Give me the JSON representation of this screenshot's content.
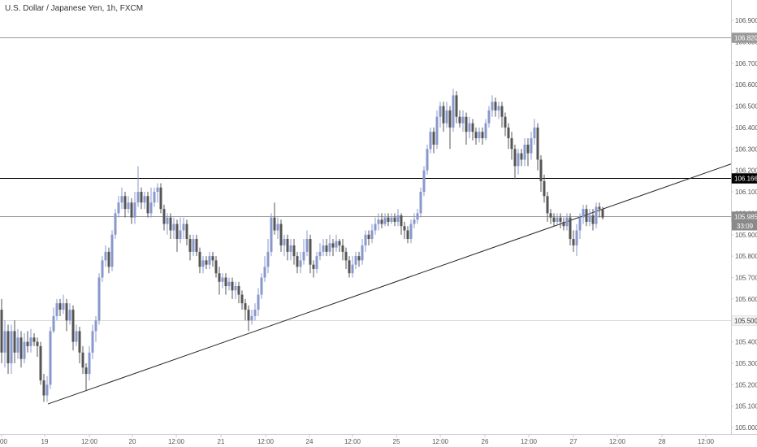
{
  "chart_data": {
    "type": "candlestick",
    "title": "U.S. Dollar / Japanese Yen, 1h, FXCM",
    "y_ticks": [
      "105.000",
      "105.100",
      "105.200",
      "105.300",
      "105.400",
      "105.500",
      "105.600",
      "105.700",
      "105.800",
      "105.900",
      "106.000",
      "106.100",
      "106.200",
      "106.300",
      "106.400",
      "106.500",
      "106.600",
      "106.700",
      "106.800",
      "106.900"
    ],
    "ylim": [
      104.97,
      106.995
    ],
    "x_ticks": [
      {
        "label": "00",
        "pos": 2
      },
      {
        "label": "19",
        "pos": 55
      },
      {
        "label": "12:00",
        "pos": 110
      },
      {
        "label": "20",
        "pos": 163
      },
      {
        "label": "12:00",
        "pos": 217
      },
      {
        "label": "21",
        "pos": 272
      },
      {
        "label": "12:00",
        "pos": 327
      },
      {
        "label": "24",
        "pos": 381
      },
      {
        "label": "12:00",
        "pos": 434
      },
      {
        "label": "25",
        "pos": 488
      },
      {
        "label": "12:00",
        "pos": 542
      },
      {
        "label": "26",
        "pos": 597
      },
      {
        "label": "12:00",
        "pos": 651
      },
      {
        "label": "27",
        "pos": 706
      },
      {
        "label": "12:00",
        "pos": 760
      },
      {
        "label": "28",
        "pos": 815
      },
      {
        "label": "12:00",
        "pos": 869
      }
    ],
    "x_range": [
      0,
      900
    ],
    "candles": [
      [
        2,
        105.55,
        105.35,
        105.6,
        105.3
      ],
      [
        6,
        105.35,
        105.45,
        105.5,
        105.28
      ],
      [
        10,
        105.45,
        105.3,
        105.48,
        105.25
      ],
      [
        14,
        105.3,
        105.45,
        105.48,
        105.25
      ],
      [
        18,
        105.45,
        105.35,
        105.5,
        105.3
      ],
      [
        22,
        105.35,
        105.42,
        105.46,
        105.32
      ],
      [
        26,
        105.42,
        105.32,
        105.45,
        105.28
      ],
      [
        30,
        105.32,
        105.4,
        105.44,
        105.3
      ],
      [
        34,
        105.4,
        105.38,
        105.45,
        105.35
      ],
      [
        38,
        105.38,
        105.42,
        105.46,
        105.35
      ],
      [
        42,
        105.42,
        105.4,
        105.44,
        105.38
      ],
      [
        46,
        105.4,
        105.38,
        105.42,
        105.33
      ],
      [
        50,
        105.38,
        105.22,
        105.4,
        105.2
      ],
      [
        54,
        105.22,
        105.15,
        105.25,
        105.12
      ],
      [
        58,
        105.15,
        105.2,
        105.24,
        105.12
      ],
      [
        62,
        105.2,
        105.45,
        105.47,
        105.18
      ],
      [
        66,
        105.45,
        105.52,
        105.56,
        105.44
      ],
      [
        70,
        105.52,
        105.58,
        105.6,
        105.5
      ],
      [
        74,
        105.58,
        105.55,
        105.6,
        105.52
      ],
      [
        78,
        105.55,
        105.58,
        105.62,
        105.53
      ],
      [
        82,
        105.58,
        105.5,
        105.6,
        105.45
      ],
      [
        86,
        105.5,
        105.55,
        105.58,
        105.48
      ],
      [
        90,
        105.55,
        105.4,
        105.57,
        105.36
      ],
      [
        94,
        105.4,
        105.45,
        105.48,
        105.38
      ],
      [
        98,
        105.45,
        105.35,
        105.47,
        105.3
      ],
      [
        102,
        105.35,
        105.28,
        105.38,
        105.25
      ],
      [
        106,
        105.28,
        105.25,
        105.3,
        105.17
      ],
      [
        110,
        105.25,
        105.35,
        105.38,
        105.22
      ],
      [
        114,
        105.35,
        105.45,
        105.48,
        105.32
      ],
      [
        118,
        105.45,
        105.5,
        105.52,
        105.4
      ],
      [
        122,
        105.5,
        105.7,
        105.72,
        105.48
      ],
      [
        126,
        105.7,
        105.78,
        105.8,
        105.68
      ],
      [
        130,
        105.78,
        105.82,
        105.85,
        105.75
      ],
      [
        134,
        105.82,
        105.75,
        105.84,
        105.72
      ],
      [
        138,
        105.75,
        105.9,
        105.92,
        105.73
      ],
      [
        142,
        105.9,
        106.0,
        106.02,
        105.88
      ],
      [
        146,
        106.0,
        106.05,
        106.08,
        105.98
      ],
      [
        150,
        106.05,
        106.08,
        106.12,
        106.02
      ],
      [
        154,
        106.08,
        106.02,
        106.1,
        105.98
      ],
      [
        158,
        106.02,
        106.05,
        106.08,
        106.0
      ],
      [
        162,
        106.05,
        105.98,
        106.07,
        105.95
      ],
      [
        166,
        105.98,
        106.05,
        106.1,
        105.95
      ],
      [
        170,
        106.05,
        106.1,
        106.22,
        106.03
      ],
      [
        174,
        106.1,
        106.05,
        106.12,
        106.02
      ],
      [
        178,
        106.05,
        106.08,
        106.1,
        106.02
      ],
      [
        182,
        106.08,
        106.0,
        106.1,
        105.98
      ],
      [
        186,
        106.0,
        106.05,
        106.12,
        105.98
      ],
      [
        190,
        106.05,
        106.1,
        106.12,
        106.03
      ],
      [
        194,
        106.1,
        106.12,
        106.14,
        106.05
      ],
      [
        198,
        106.12,
        106.02,
        106.14,
        106.0
      ],
      [
        202,
        106.02,
        105.95,
        106.04,
        105.92
      ],
      [
        206,
        105.95,
        105.98,
        106.0,
        105.9
      ],
      [
        210,
        105.98,
        105.92,
        106.0,
        105.88
      ],
      [
        214,
        105.92,
        105.95,
        105.98,
        105.88
      ],
      [
        218,
        105.95,
        105.88,
        105.97,
        105.82
      ],
      [
        222,
        105.88,
        105.92,
        105.98,
        105.86
      ],
      [
        226,
        105.92,
        105.95,
        105.98,
        105.88
      ],
      [
        230,
        105.95,
        105.88,
        105.97,
        105.85
      ],
      [
        234,
        105.88,
        105.82,
        105.9,
        105.78
      ],
      [
        238,
        105.82,
        105.88,
        105.9,
        105.8
      ],
      [
        242,
        105.88,
        105.82,
        105.9,
        105.8
      ],
      [
        246,
        105.82,
        105.75,
        105.84,
        105.72
      ],
      [
        250,
        105.75,
        105.78,
        105.8,
        105.72
      ],
      [
        254,
        105.78,
        105.76,
        105.8,
        105.74
      ],
      [
        258,
        105.76,
        105.8,
        105.82,
        105.74
      ],
      [
        262,
        105.8,
        105.78,
        105.82,
        105.75
      ],
      [
        266,
        105.78,
        105.72,
        105.8,
        105.7
      ],
      [
        270,
        105.72,
        105.68,
        105.75,
        105.62
      ],
      [
        274,
        105.68,
        105.7,
        105.72,
        105.65
      ],
      [
        278,
        105.7,
        105.66,
        105.72,
        105.62
      ],
      [
        282,
        105.66,
        105.68,
        105.7,
        105.64
      ],
      [
        286,
        105.68,
        105.64,
        105.7,
        105.6
      ],
      [
        290,
        105.64,
        105.66,
        105.68,
        105.6
      ],
      [
        294,
        105.66,
        105.62,
        105.68,
        105.58
      ],
      [
        298,
        105.62,
        105.58,
        105.64,
        105.55
      ],
      [
        302,
        105.58,
        105.55,
        105.6,
        105.5
      ],
      [
        306,
        105.55,
        105.5,
        105.57,
        105.45
      ],
      [
        310,
        105.5,
        105.52,
        105.55,
        105.48
      ],
      [
        314,
        105.52,
        105.55,
        105.58,
        105.5
      ],
      [
        318,
        105.55,
        105.62,
        105.65,
        105.52
      ],
      [
        322,
        105.62,
        105.7,
        105.72,
        105.6
      ],
      [
        326,
        105.7,
        105.75,
        105.8,
        105.68
      ],
      [
        330,
        105.75,
        105.82,
        105.88,
        105.72
      ],
      [
        334,
        105.82,
        105.98,
        106.0,
        105.8
      ],
      [
        338,
        105.98,
        105.92,
        106.05,
        105.9
      ],
      [
        342,
        105.92,
        105.95,
        105.98,
        105.88
      ],
      [
        346,
        105.95,
        105.85,
        105.97,
        105.82
      ],
      [
        350,
        105.85,
        105.88,
        105.9,
        105.8
      ],
      [
        354,
        105.88,
        105.82,
        105.9,
        105.78
      ],
      [
        358,
        105.82,
        105.85,
        105.88,
        105.78
      ],
      [
        362,
        105.85,
        105.8,
        105.88,
        105.76
      ],
      [
        366,
        105.8,
        105.75,
        105.82,
        105.72
      ],
      [
        370,
        105.75,
        105.78,
        105.82,
        105.72
      ],
      [
        374,
        105.78,
        105.82,
        105.88,
        105.76
      ],
      [
        378,
        105.82,
        105.88,
        105.92,
        105.8
      ],
      [
        382,
        105.88,
        105.76,
        105.9,
        105.72
      ],
      [
        386,
        105.76,
        105.74,
        105.78,
        105.7
      ],
      [
        390,
        105.74,
        105.8,
        105.82,
        105.72
      ],
      [
        394,
        105.8,
        105.82,
        105.86,
        105.78
      ],
      [
        398,
        105.82,
        105.85,
        105.88,
        105.8
      ],
      [
        402,
        105.85,
        105.82,
        105.88,
        105.8
      ],
      [
        406,
        105.82,
        105.86,
        105.9,
        105.8
      ],
      [
        410,
        105.86,
        105.84,
        105.88,
        105.8
      ],
      [
        414,
        105.84,
        105.87,
        105.9,
        105.82
      ],
      [
        418,
        105.87,
        105.85,
        105.88,
        105.82
      ],
      [
        422,
        105.85,
        105.82,
        105.88,
        105.78
      ],
      [
        426,
        105.82,
        105.78,
        105.84,
        105.74
      ],
      [
        430,
        105.78,
        105.72,
        105.8,
        105.7
      ],
      [
        434,
        105.72,
        105.76,
        105.8,
        105.7
      ],
      [
        438,
        105.76,
        105.8,
        105.82,
        105.74
      ],
      [
        442,
        105.8,
        105.78,
        105.82,
        105.75
      ],
      [
        446,
        105.78,
        105.85,
        105.88,
        105.76
      ],
      [
        450,
        105.85,
        105.9,
        105.92,
        105.82
      ],
      [
        454,
        105.9,
        105.88,
        105.92,
        105.85
      ],
      [
        458,
        105.88,
        105.92,
        105.95,
        105.86
      ],
      [
        462,
        105.92,
        105.95,
        105.98,
        105.9
      ],
      [
        466,
        105.95,
        105.97,
        106.0,
        105.92
      ],
      [
        470,
        105.97,
        105.95,
        106.0,
        105.93
      ],
      [
        474,
        105.95,
        105.98,
        106.0,
        105.94
      ],
      [
        478,
        105.98,
        105.96,
        106.0,
        105.94
      ],
      [
        482,
        105.96,
        105.98,
        106.0,
        105.95
      ],
      [
        486,
        105.98,
        105.96,
        106.0,
        105.94
      ],
      [
        490,
        105.96,
        105.99,
        106.02,
        105.94
      ],
      [
        494,
        105.99,
        105.94,
        106.0,
        105.9
      ],
      [
        498,
        105.94,
        105.92,
        105.96,
        105.88
      ],
      [
        502,
        105.92,
        105.88,
        105.94,
        105.86
      ],
      [
        506,
        105.88,
        105.95,
        105.97,
        105.86
      ],
      [
        510,
        105.95,
        105.97,
        106.0,
        105.93
      ],
      [
        514,
        105.97,
        106.0,
        106.02,
        105.95
      ],
      [
        518,
        106.0,
        106.1,
        106.12,
        105.98
      ],
      [
        522,
        106.1,
        106.2,
        106.22,
        106.08
      ],
      [
        526,
        106.2,
        106.3,
        106.32,
        106.18
      ],
      [
        530,
        106.3,
        106.38,
        106.4,
        106.28
      ],
      [
        534,
        106.38,
        106.32,
        106.4,
        106.28
      ],
      [
        538,
        106.32,
        106.45,
        106.48,
        106.3
      ],
      [
        542,
        106.45,
        106.5,
        106.52,
        106.4
      ],
      [
        546,
        106.5,
        106.42,
        106.52,
        106.38
      ],
      [
        550,
        106.42,
        106.48,
        106.52,
        106.4
      ],
      [
        554,
        106.48,
        106.4,
        106.5,
        106.3
      ],
      [
        558,
        106.4,
        106.55,
        106.58,
        106.38
      ],
      [
        562,
        106.55,
        106.45,
        106.57,
        106.42
      ],
      [
        566,
        106.45,
        106.42,
        106.48,
        106.4
      ],
      [
        570,
        106.42,
        106.45,
        106.48,
        106.38
      ],
      [
        574,
        106.45,
        106.38,
        106.47,
        106.32
      ],
      [
        578,
        106.38,
        106.42,
        106.45,
        106.35
      ],
      [
        582,
        106.42,
        106.38,
        106.44,
        106.34
      ],
      [
        586,
        106.38,
        106.35,
        106.4,
        106.32
      ],
      [
        590,
        106.35,
        106.38,
        106.4,
        106.33
      ],
      [
        594,
        106.38,
        106.35,
        106.4,
        106.32
      ],
      [
        598,
        106.35,
        106.42,
        106.44,
        106.34
      ],
      [
        602,
        106.42,
        106.48,
        106.5,
        106.4
      ],
      [
        606,
        106.48,
        106.52,
        106.55,
        106.45
      ],
      [
        610,
        106.52,
        106.48,
        106.54,
        106.45
      ],
      [
        614,
        106.48,
        106.5,
        106.52,
        106.44
      ],
      [
        618,
        106.5,
        106.45,
        106.52,
        106.4
      ],
      [
        622,
        106.45,
        106.4,
        106.47,
        106.36
      ],
      [
        626,
        106.4,
        106.35,
        106.42,
        106.3
      ],
      [
        630,
        106.35,
        106.3,
        106.38,
        106.25
      ],
      [
        634,
        106.3,
        106.22,
        106.32,
        106.16
      ],
      [
        638,
        106.22,
        106.28,
        106.3,
        106.18
      ],
      [
        642,
        106.28,
        106.25,
        106.3,
        106.22
      ],
      [
        646,
        106.25,
        106.32,
        106.35,
        106.22
      ],
      [
        650,
        106.32,
        106.28,
        106.35,
        106.22
      ],
      [
        654,
        106.28,
        106.35,
        106.38,
        106.25
      ],
      [
        658,
        106.35,
        106.4,
        106.44,
        106.32
      ],
      [
        662,
        106.4,
        106.25,
        106.42,
        106.2
      ],
      [
        666,
        106.25,
        106.15,
        106.27,
        106.1
      ],
      [
        670,
        106.15,
        106.08,
        106.18,
        106.05
      ],
      [
        674,
        106.08,
        106.0,
        106.1,
        105.96
      ],
      [
        678,
        106.0,
        105.98,
        106.02,
        105.95
      ],
      [
        682,
        105.98,
        105.96,
        106.0,
        105.94
      ],
      [
        686,
        105.96,
        105.98,
        106.0,
        105.94
      ],
      [
        690,
        105.98,
        105.96,
        106.0,
        105.93
      ],
      [
        694,
        105.96,
        105.94,
        105.98,
        105.92
      ],
      [
        698,
        105.94,
        105.98,
        106.0,
        105.92
      ],
      [
        702,
        105.98,
        105.88,
        106.0,
        105.85
      ],
      [
        706,
        105.88,
        105.85,
        105.92,
        105.82
      ],
      [
        710,
        105.85,
        105.92,
        105.95,
        105.8
      ],
      [
        714,
        105.92,
        105.98,
        106.0,
        105.88
      ],
      [
        718,
        105.98,
        106.02,
        106.04,
        105.95
      ],
      [
        722,
        106.02,
        105.96,
        106.04,
        105.94
      ],
      [
        726,
        105.96,
        105.99,
        106.02,
        105.94
      ],
      [
        730,
        105.99,
        105.95,
        106.02,
        105.92
      ],
      [
        734,
        105.95,
        106.03,
        106.05,
        105.93
      ],
      [
        738,
        106.03,
        106.02,
        106.05,
        105.98
      ],
      [
        742,
        106.02,
        105.98,
        106.03,
        105.97
      ]
    ],
    "trendline": [
      [
        59,
        105.11
      ],
      [
        900,
        106.23
      ]
    ],
    "hlines": [
      {
        "value": 106.82,
        "label": "106.820",
        "style": "grey-line"
      },
      {
        "value": 106.166,
        "label": "106.166",
        "style": "black-line"
      },
      {
        "value": 105.985,
        "label": "105.985",
        "style": "current-price",
        "sublabel": "33:09"
      },
      {
        "value": 105.5,
        "label": "105.500",
        "style": "light-line"
      }
    ],
    "colors": {
      "up": "#8898cc",
      "down": "#555555",
      "axis": "#cccccc",
      "text": "#555555"
    }
  }
}
